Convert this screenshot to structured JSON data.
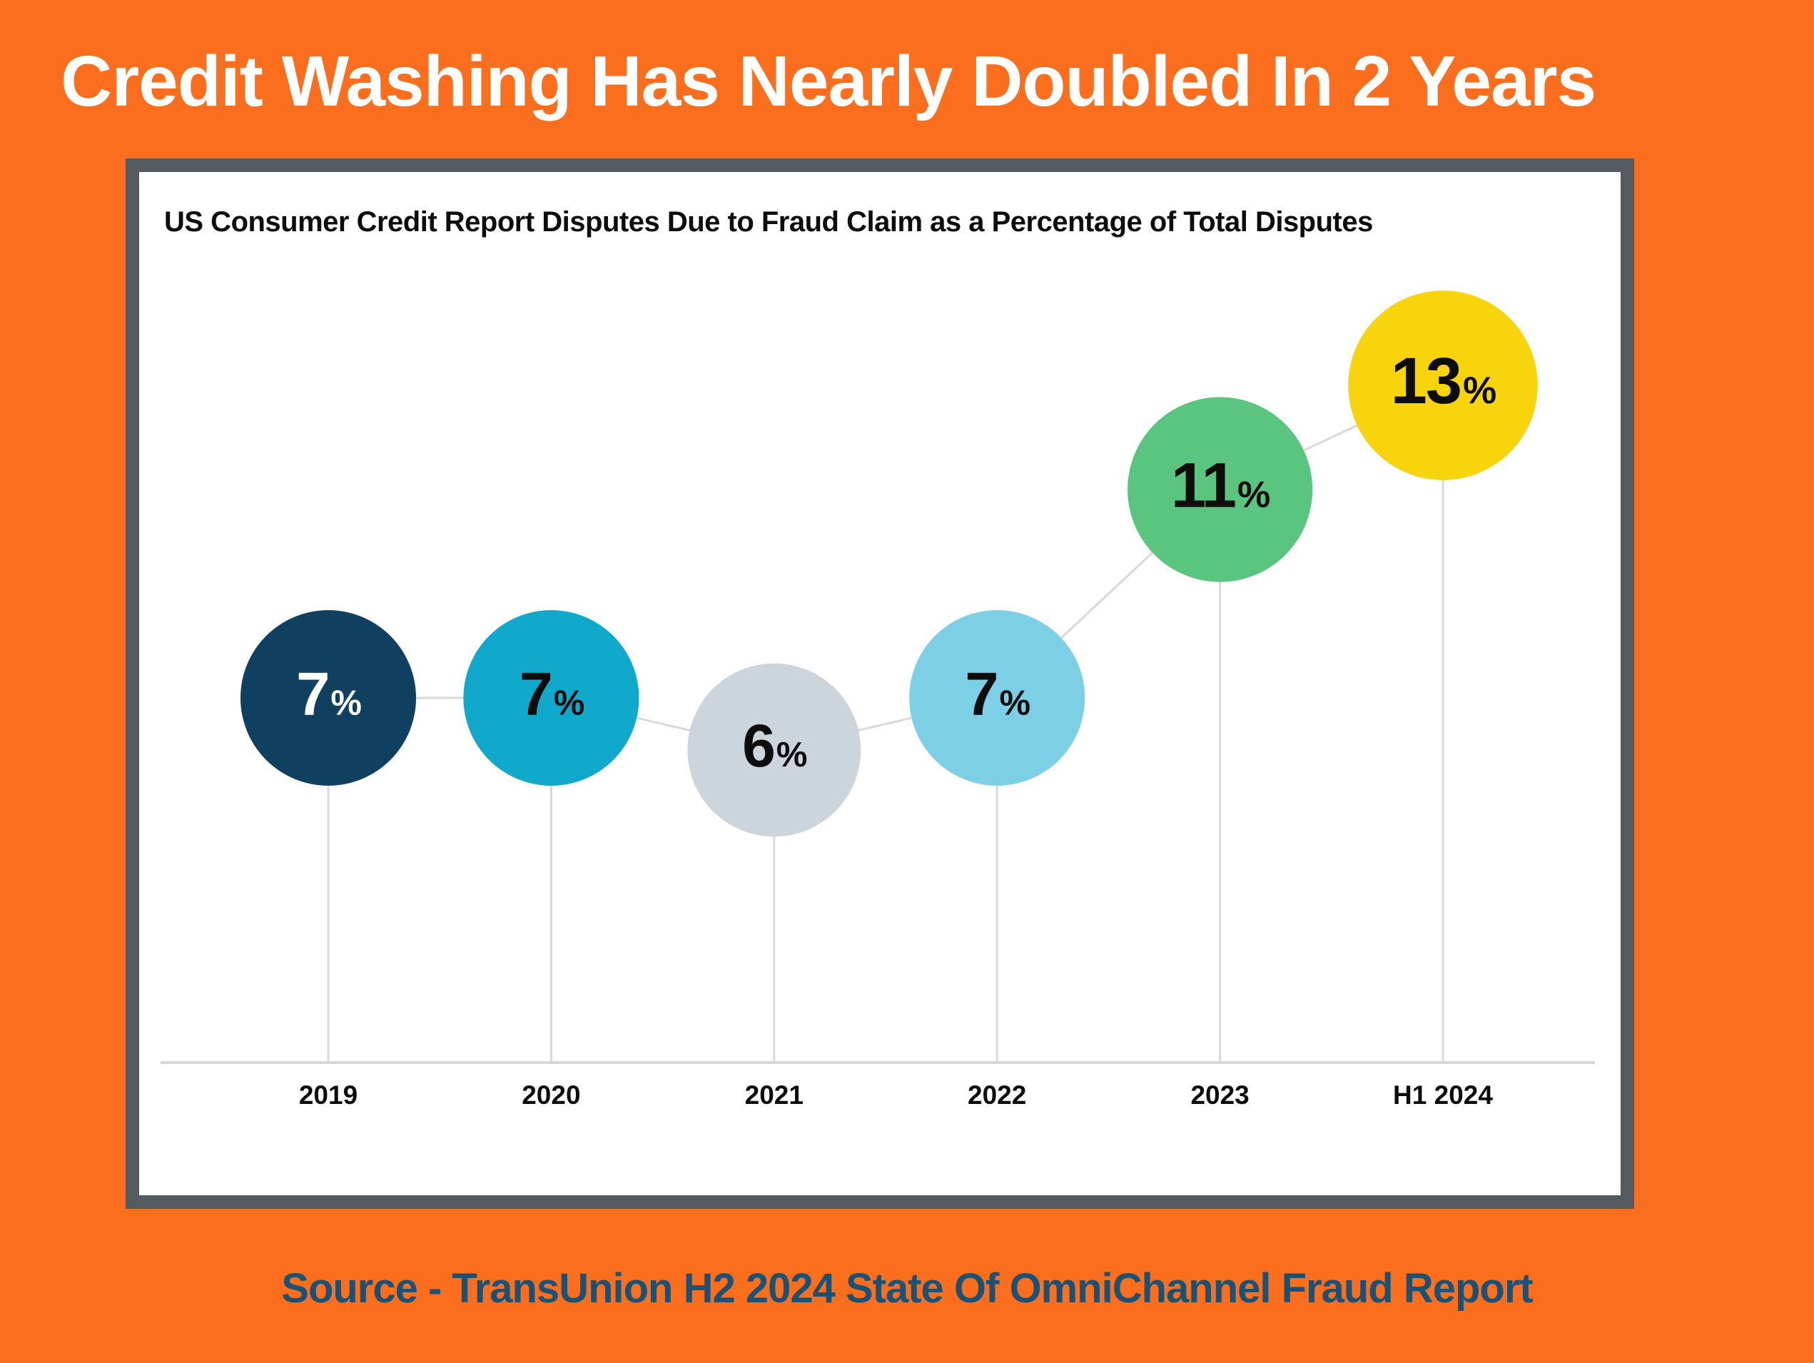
{
  "page": {
    "title": "Credit Washing Has Nearly Doubled In 2 Years",
    "source": "Source - TransUnion H2 2024 State Of OmniChannel Fraud Report",
    "colors": {
      "background": "#FA6E1E",
      "title_text": "#FFFFFF",
      "card_border": "#555A60",
      "card_background": "#FFFFFF",
      "source_text": "#1A5276"
    }
  },
  "chart_data": {
    "type": "line",
    "title": "US Consumer Credit Report Disputes Due to Fraud Claim as a Percentage of Total Disputes",
    "categories": [
      "2019",
      "2020",
      "2021",
      "2022",
      "2023",
      "H1 2024"
    ],
    "values": [
      7,
      7,
      6,
      7,
      11,
      13
    ],
    "unit": "%",
    "xlabel": "",
    "ylabel": "",
    "ylim": [
      0,
      17
    ],
    "grid": false,
    "legend": false,
    "marker_style": "bubble",
    "point_colors": [
      "#0F405F",
      "#10A8CB",
      "#CCD5DB",
      "#7DCFE5",
      "#5AC57E",
      "#F8D40D"
    ],
    "point_label_colors": [
      "#FFFFFF",
      "#0D0D0D",
      "#0D0D0D",
      "#0D0D0D",
      "#0D0D0D",
      "#0D0D0D"
    ],
    "connector_color": "#D9D9D9",
    "axis_color": "#D6D6D6",
    "tick_label_color": "#0D0D0D",
    "title_color": "#0D0D0D"
  }
}
